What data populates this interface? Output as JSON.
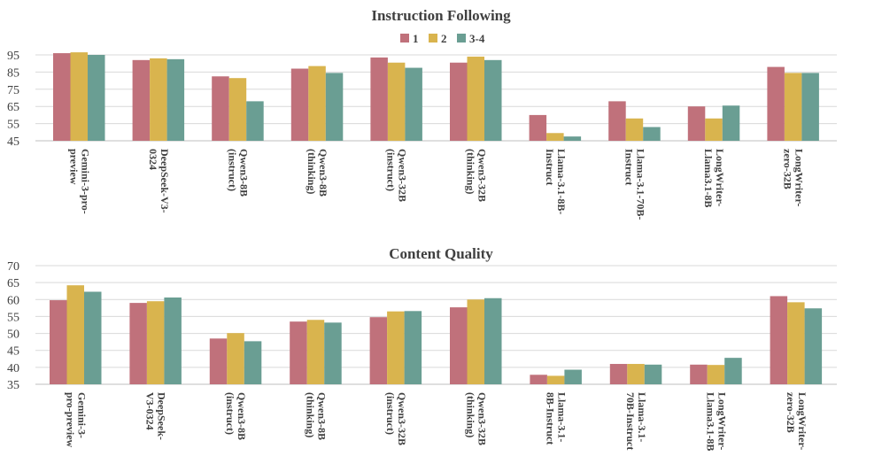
{
  "colors": {
    "series_1": "#c0717b",
    "series_2": "#d9b44e",
    "series_3": "#6a9e93"
  },
  "chart_data": [
    {
      "type": "bar",
      "title": "Instruction Following",
      "legend": [
        "1",
        "2",
        "3-4"
      ],
      "legend_position": "top-center",
      "ylim": [
        45,
        100
      ],
      "yticks": [
        45,
        55,
        65,
        75,
        85,
        95
      ],
      "grid": true,
      "categories": [
        [
          "Gemini-3-pro-",
          "preview"
        ],
        [
          "DeepSeek-V3-",
          "0324"
        ],
        [
          "Qwen3-8B",
          "(instruct)"
        ],
        [
          "Qwen3-8B",
          "(thinking)"
        ],
        [
          "Qwen3-32B",
          "(instruct)"
        ],
        [
          "Qwen3-32B",
          "(thinking)"
        ],
        [
          "Llama-3.1-8B-",
          "Instruct"
        ],
        [
          "Llama-3.1-70B-",
          "Instruct"
        ],
        [
          "LongWriter-",
          "Llama3.1-8B"
        ],
        [
          "LongWriter-",
          "zero-32B"
        ]
      ],
      "series": [
        {
          "name": "1",
          "values": [
            96,
            92,
            82.5,
            87,
            93.5,
            90.5,
            60,
            68,
            65,
            88
          ]
        },
        {
          "name": "2",
          "values": [
            96.5,
            93,
            81.5,
            88.5,
            90.5,
            94,
            49.5,
            58,
            58,
            84.5
          ]
        },
        {
          "name": "3-4",
          "values": [
            95,
            92.5,
            68,
            84.5,
            87.5,
            92,
            47.5,
            53,
            65.5,
            84.5
          ]
        }
      ]
    },
    {
      "type": "bar",
      "title": "Content Quality",
      "ylim": [
        35,
        70
      ],
      "yticks": [
        35,
        40,
        45,
        50,
        55,
        60,
        65,
        70
      ],
      "grid": true,
      "categories": [
        [
          "Gemini-3-",
          "pro-preview"
        ],
        [
          "DeepSeek-",
          "V3-0324"
        ],
        [
          "Qwen3-8B",
          "(instruct)"
        ],
        [
          "Qwen3-8B",
          "(thinking)"
        ],
        [
          "Qwen3-32B",
          "(instruct)"
        ],
        [
          "Qwen3-32B",
          "(thinking)"
        ],
        [
          "Llama-3.1-",
          "8B-Instruct"
        ],
        [
          "Llama-3.1-",
          "70B-Instruct"
        ],
        [
          "LongWriter-",
          "Llama3.1-8B"
        ],
        [
          "LongWriter-",
          "zero-32B"
        ]
      ],
      "series": [
        {
          "name": "1",
          "values": [
            59.8,
            59,
            48.5,
            53.5,
            54.8,
            57.7,
            37.8,
            41,
            40.8,
            61
          ]
        },
        {
          "name": "2",
          "values": [
            64.2,
            59.5,
            50.1,
            54,
            56.5,
            60,
            37.5,
            41,
            40.7,
            59.2
          ]
        },
        {
          "name": "3-4",
          "values": [
            62.3,
            60.6,
            47.7,
            53.2,
            56.6,
            60.4,
            39.3,
            40.8,
            42.8,
            57.4
          ]
        }
      ]
    }
  ]
}
